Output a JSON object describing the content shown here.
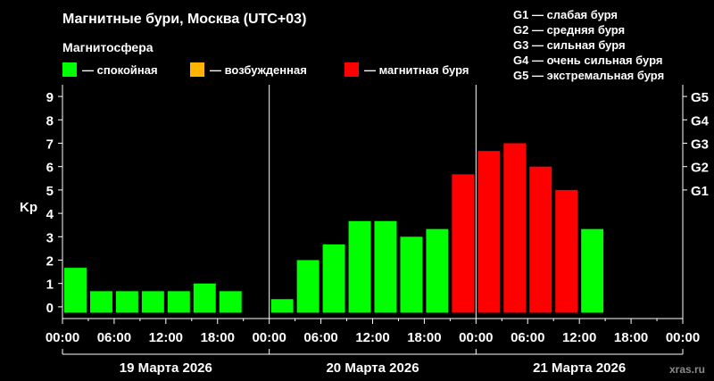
{
  "title": "Магнитные бури, Москва (UTC+03)",
  "legend": {
    "heading": "Магнитосфера",
    "items": [
      {
        "label": "— спокойная",
        "color": "#00ff00"
      },
      {
        "label": "— возбужденная",
        "color": "#ffb400"
      },
      {
        "label": "— магнитная буря",
        "color": "#ff0000"
      }
    ]
  },
  "storm_scale": [
    "G1 — слабая буря",
    "G2 — средняя буря",
    "G3 — сильная буря",
    "G4 — очень сильная буря",
    "G5 — экстремальная буря"
  ],
  "watermark": "xras.ru",
  "colors": {
    "quiet": "#00ff00",
    "excited": "#ffb400",
    "storm": "#ff0000",
    "background": "#000000",
    "axis": "#ffffff"
  },
  "chart_data": {
    "type": "bar",
    "ylabel": "Kp",
    "ylim": [
      0,
      9
    ],
    "y_ticks": [
      "0",
      "1",
      "2",
      "3",
      "4",
      "5",
      "6",
      "7",
      "8",
      "9"
    ],
    "right_ticks": [
      {
        "label": "G1",
        "value": 5
      },
      {
        "label": "G2",
        "value": 6
      },
      {
        "label": "G3",
        "value": 7
      },
      {
        "label": "G4",
        "value": 8
      },
      {
        "label": "G5",
        "value": 9
      }
    ],
    "x_tick_labels": [
      "00:00",
      "06:00",
      "12:00",
      "18:00",
      "00:00",
      "06:00",
      "12:00",
      "18:00",
      "00:00",
      "06:00",
      "12:00",
      "18:00",
      "00:00"
    ],
    "days": [
      "19 Марта 2026",
      "20 Марта 2026",
      "21 Марта 2026"
    ],
    "interval_hours": 3,
    "values": [
      1.67,
      0.67,
      0.67,
      0.67,
      0.67,
      1.0,
      0.67,
      null,
      0.33,
      2.0,
      2.67,
      3.67,
      3.67,
      3.0,
      3.33,
      5.67,
      6.67,
      7.0,
      6.0,
      5.0,
      3.33,
      null,
      null,
      null
    ],
    "categories": [
      "quiet",
      "quiet",
      "quiet",
      "quiet",
      "quiet",
      "quiet",
      "quiet",
      null,
      "quiet",
      "quiet",
      "quiet",
      "quiet",
      "quiet",
      "quiet",
      "quiet",
      "storm",
      "storm",
      "storm",
      "storm",
      "storm",
      "quiet",
      null,
      null,
      null
    ]
  }
}
